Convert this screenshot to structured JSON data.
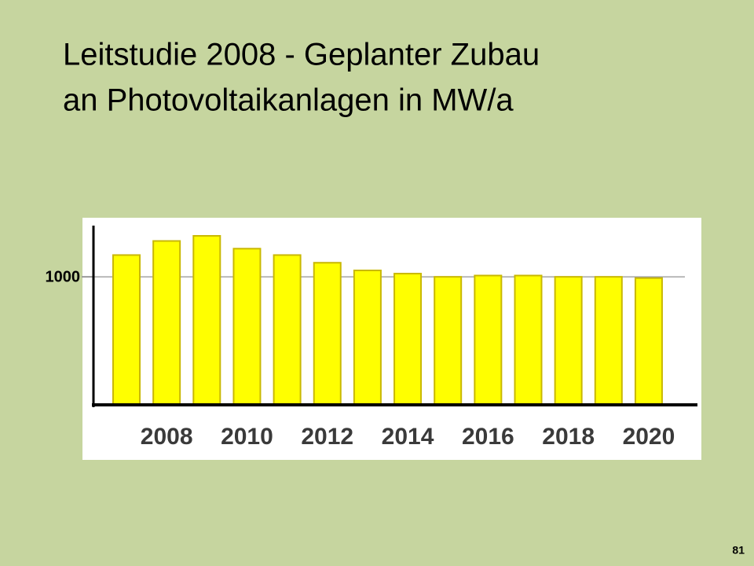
{
  "chart_data": {
    "type": "bar",
    "title": [
      "Leitstudie 2008 - Geplanter Zubau",
      "an Photovoltaikanlagen in MW/a"
    ],
    "categories": [
      null,
      "2008",
      null,
      "2010",
      null,
      "2012",
      null,
      "2014",
      null,
      "2016",
      null,
      "2018",
      null,
      "2020"
    ],
    "values": [
      1170,
      1280,
      1320,
      1220,
      1170,
      1110,
      1050,
      1025,
      1000,
      1010,
      1010,
      1000,
      1000,
      990
    ],
    "color": "#ffff00",
    "ylim": [
      0,
      1400
    ],
    "yticks": [
      1000
    ],
    "grid": true
  },
  "slide_number": "81"
}
